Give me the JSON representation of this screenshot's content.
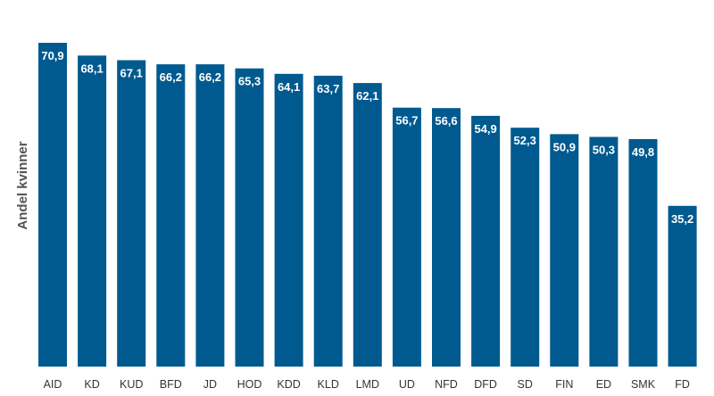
{
  "chart_data": {
    "type": "bar",
    "title": "",
    "xlabel": "",
    "ylabel": "Andel kvinner",
    "categories": [
      "AID",
      "KD",
      "KUD",
      "BFD",
      "JD",
      "HOD",
      "KDD",
      "KLD",
      "LMD",
      "UD",
      "NFD",
      "DFD",
      "SD",
      "FIN",
      "ED",
      "SMK",
      "FD"
    ],
    "values": [
      70.9,
      68.1,
      67.1,
      66.2,
      66.2,
      65.3,
      64.1,
      63.7,
      62.1,
      56.7,
      56.6,
      54.9,
      52.3,
      50.9,
      50.3,
      49.8,
      35.2
    ],
    "value_labels": [
      "70,9",
      "68,1",
      "67,1",
      "66,2",
      "66,2",
      "65,3",
      "64,1",
      "63,7",
      "62,1",
      "56,7",
      "56,6",
      "54,9",
      "52,3",
      "50,9",
      "50,3",
      "49,8",
      "35,2"
    ],
    "ylim": [
      0,
      70.9
    ],
    "grid": false,
    "bar_color": "#005a8f"
  }
}
